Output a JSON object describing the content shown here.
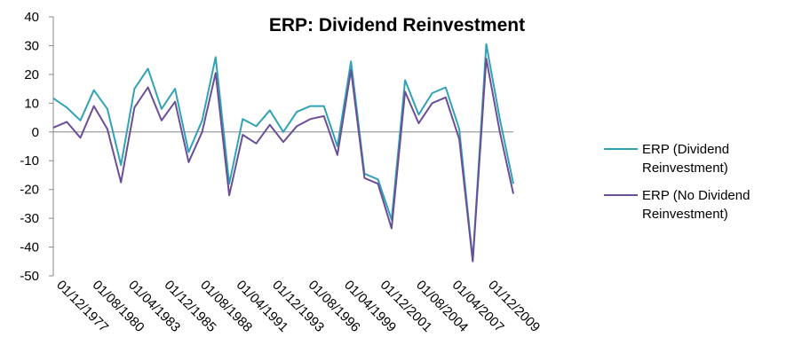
{
  "chart_data": {
    "type": "line",
    "title": "ERP: Dividend Reinvestment",
    "xlabel": "",
    "ylabel": "",
    "ylim": [
      -50,
      40
    ],
    "yticks": [
      "40",
      "30",
      "20",
      "10",
      "0",
      "-10",
      "-20",
      "-30",
      "-40",
      "-50"
    ],
    "x_tick_labels": [
      "01/12/1977",
      "01/08/1980",
      "01/04/1983",
      "01/12/1985",
      "01/08/1988",
      "01/04/1991",
      "01/12/1993",
      "01/08/1996",
      "01/04/1999",
      "01/12/2001",
      "01/08/2004",
      "01/04/2007",
      "01/12/2009"
    ],
    "grid": false,
    "legend_position": "right",
    "series": [
      {
        "name": "ERP (Dividend Reinvestment)",
        "color": "#31a2b6",
        "values": [
          11.7,
          8.5,
          4,
          14.5,
          8,
          -11.5,
          15,
          22,
          8,
          15,
          -7,
          4,
          26,
          -18,
          4.5,
          2,
          7.5,
          0,
          7,
          9,
          9,
          -5,
          24.5,
          -14.5,
          -16.5,
          -30.5,
          18,
          6,
          13.5,
          15.5,
          1,
          -44.5,
          30.5,
          4.5,
          -18
        ]
      },
      {
        "name": "ERP (No Dividend Reinvestment)",
        "color": "#6b4f96",
        "values": [
          1.5,
          3.5,
          -2,
          9,
          1,
          -17.5,
          8.5,
          15.5,
          4,
          10.5,
          -10.5,
          0,
          20.5,
          -22,
          -1,
          -4,
          2.5,
          -3.5,
          2,
          4.5,
          5.5,
          -8,
          21.5,
          -16,
          -18,
          -33.5,
          14,
          3,
          10,
          12,
          -2.5,
          -45,
          25.5,
          0,
          -21.5
        ]
      }
    ]
  }
}
